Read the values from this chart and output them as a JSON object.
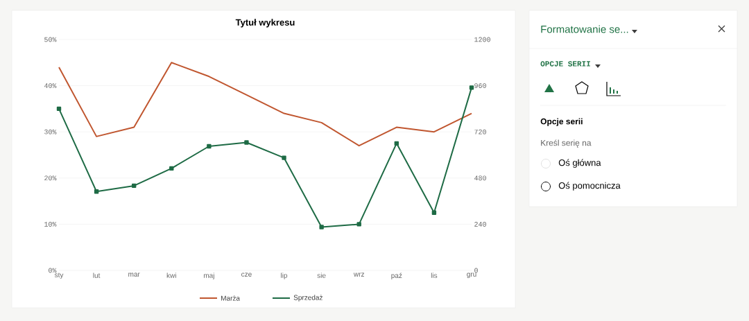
{
  "chart_data": [
    {
      "type": "line",
      "title": "Tytuł wykresu",
      "categories": [
        "sty",
        "lut",
        "mar",
        "kwi",
        "maj",
        "cze",
        "lip",
        "sie",
        "wrz",
        "paź",
        "lis",
        "gru"
      ],
      "series": [
        {
          "name": "Marża",
          "color": "#c0562f",
          "marker": "none",
          "values": [
            44,
            29,
            31,
            45,
            42,
            38,
            34,
            32,
            27,
            31,
            30,
            34
          ]
        },
        {
          "name": "Sprzedaż",
          "color": "#1e6b45",
          "marker": "square",
          "axis": "y2",
          "values": [
            840,
            410,
            440,
            530,
            645,
            665,
            585,
            225,
            240,
            660,
            300,
            950
          ]
        }
      ],
      "ylim": [
        0,
        50
      ],
      "yticks": [
        {
          "value": 0,
          "label": "0%"
        },
        {
          "value": 10,
          "label": "10%"
        },
        {
          "value": 20,
          "label": "20%"
        },
        {
          "value": 30,
          "label": "30%"
        },
        {
          "value": 40,
          "label": "40%"
        },
        {
          "value": 50,
          "label": "50%"
        }
      ],
      "y2lim": [
        0,
        1200
      ],
      "y2ticks": [
        0,
        240,
        480,
        720,
        960,
        1200
      ],
      "grid": "y",
      "legend": "bottom",
      "line_style": "solid"
    },
    {
      "type": "other",
      "title": "Formatowanie se...",
      "annotations": [
        "OPCJE SERII",
        "Opcje serii",
        "Kreśl serię na",
        "Oś główna",
        "Oś pomocnicza"
      ]
    }
  ]
}
